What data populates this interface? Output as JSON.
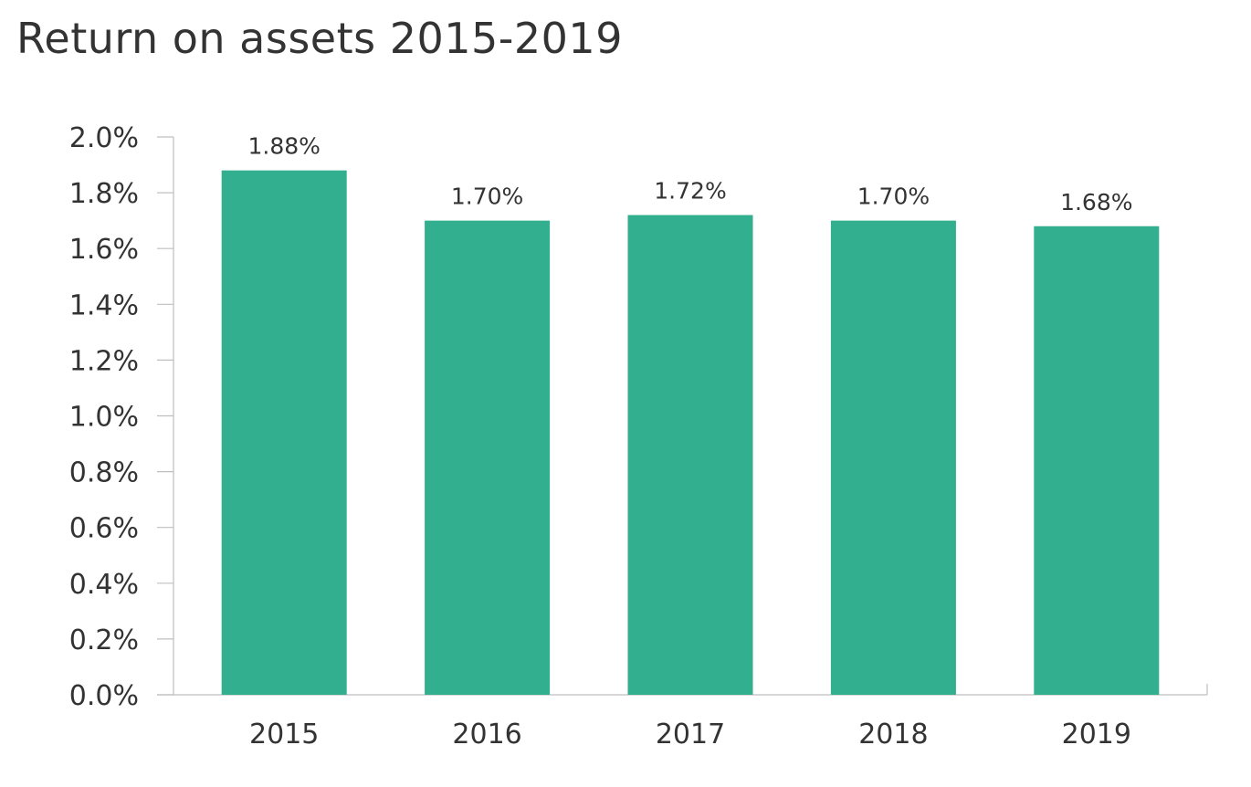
{
  "chart_data": {
    "type": "bar",
    "title": "Return on assets 2015-2019",
    "categories": [
      "2015",
      "2016",
      "2017",
      "2018",
      "2019"
    ],
    "values": [
      1.88,
      1.7,
      1.72,
      1.7,
      1.68
    ],
    "data_labels": [
      "1.88%",
      "1.70%",
      "1.72%",
      "1.70%",
      "1.68%"
    ],
    "ylim": [
      0,
      2.0
    ],
    "y_ticks": [
      0.0,
      0.2,
      0.4,
      0.6,
      0.8,
      1.0,
      1.2,
      1.4,
      1.6,
      1.8,
      2.0
    ],
    "y_tick_labels": [
      "0.0%",
      "0.2%",
      "0.4%",
      "0.6%",
      "0.8%",
      "1.0%",
      "1.2%",
      "1.4%",
      "1.6%",
      "1.8%",
      "2.0%"
    ],
    "xlabel": "",
    "ylabel": "",
    "grid": false,
    "legend": "none",
    "bar_color": "#31AF8E",
    "axis_color": "#BFBFBF",
    "text_color": "#333333"
  }
}
